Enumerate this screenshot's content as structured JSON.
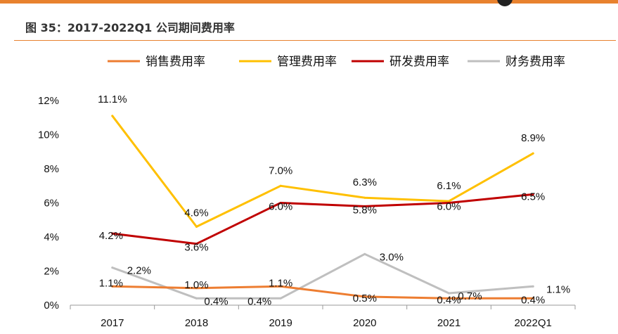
{
  "figure_title": "图 35：2017-2022Q1 公司期间费用率",
  "colors": {
    "accent": "#e8822f"
  },
  "chart_data": {
    "type": "line",
    "categories": [
      "2017",
      "2018",
      "2019",
      "2020",
      "2021",
      "2022Q1"
    ],
    "ylim": [
      0,
      12
    ],
    "yticks": [
      0,
      2,
      4,
      6,
      8,
      10,
      12
    ],
    "ytick_labels": [
      "0%",
      "2%",
      "4%",
      "6%",
      "8%",
      "10%",
      "12%"
    ],
    "grid": false,
    "legend_position": "top",
    "series": [
      {
        "name": "销售费用率",
        "color": "#ed7d31",
        "values": [
          1.1,
          1.0,
          1.1,
          0.5,
          0.4,
          0.4
        ],
        "labels": [
          "1.1%",
          "1.0%",
          "1.1%",
          "0.5%",
          "0.4%",
          "0.4%"
        ]
      },
      {
        "name": "管理费用率",
        "color": "#ffc000",
        "values": [
          11.1,
          4.6,
          7.0,
          6.3,
          6.1,
          8.9
        ],
        "labels": [
          "11.1%",
          "4.6%",
          "7.0%",
          "6.3%",
          "6.1%",
          "8.9%"
        ]
      },
      {
        "name": "研发费用率",
        "color": "#c00000",
        "values": [
          4.2,
          3.6,
          6.0,
          5.8,
          6.0,
          6.5
        ],
        "labels": [
          "4.2%",
          "3.6%",
          "6.0%",
          "5.8%",
          "6.0%",
          "6.5%"
        ]
      },
      {
        "name": "财务费用率",
        "color": "#bfbfbf",
        "values": [
          2.2,
          0.4,
          0.4,
          3.0,
          0.7,
          1.1
        ],
        "labels": [
          "2.2%",
          "0.4%",
          "0.4%",
          "3.0%",
          "0.7%",
          "1.1%"
        ]
      }
    ]
  }
}
